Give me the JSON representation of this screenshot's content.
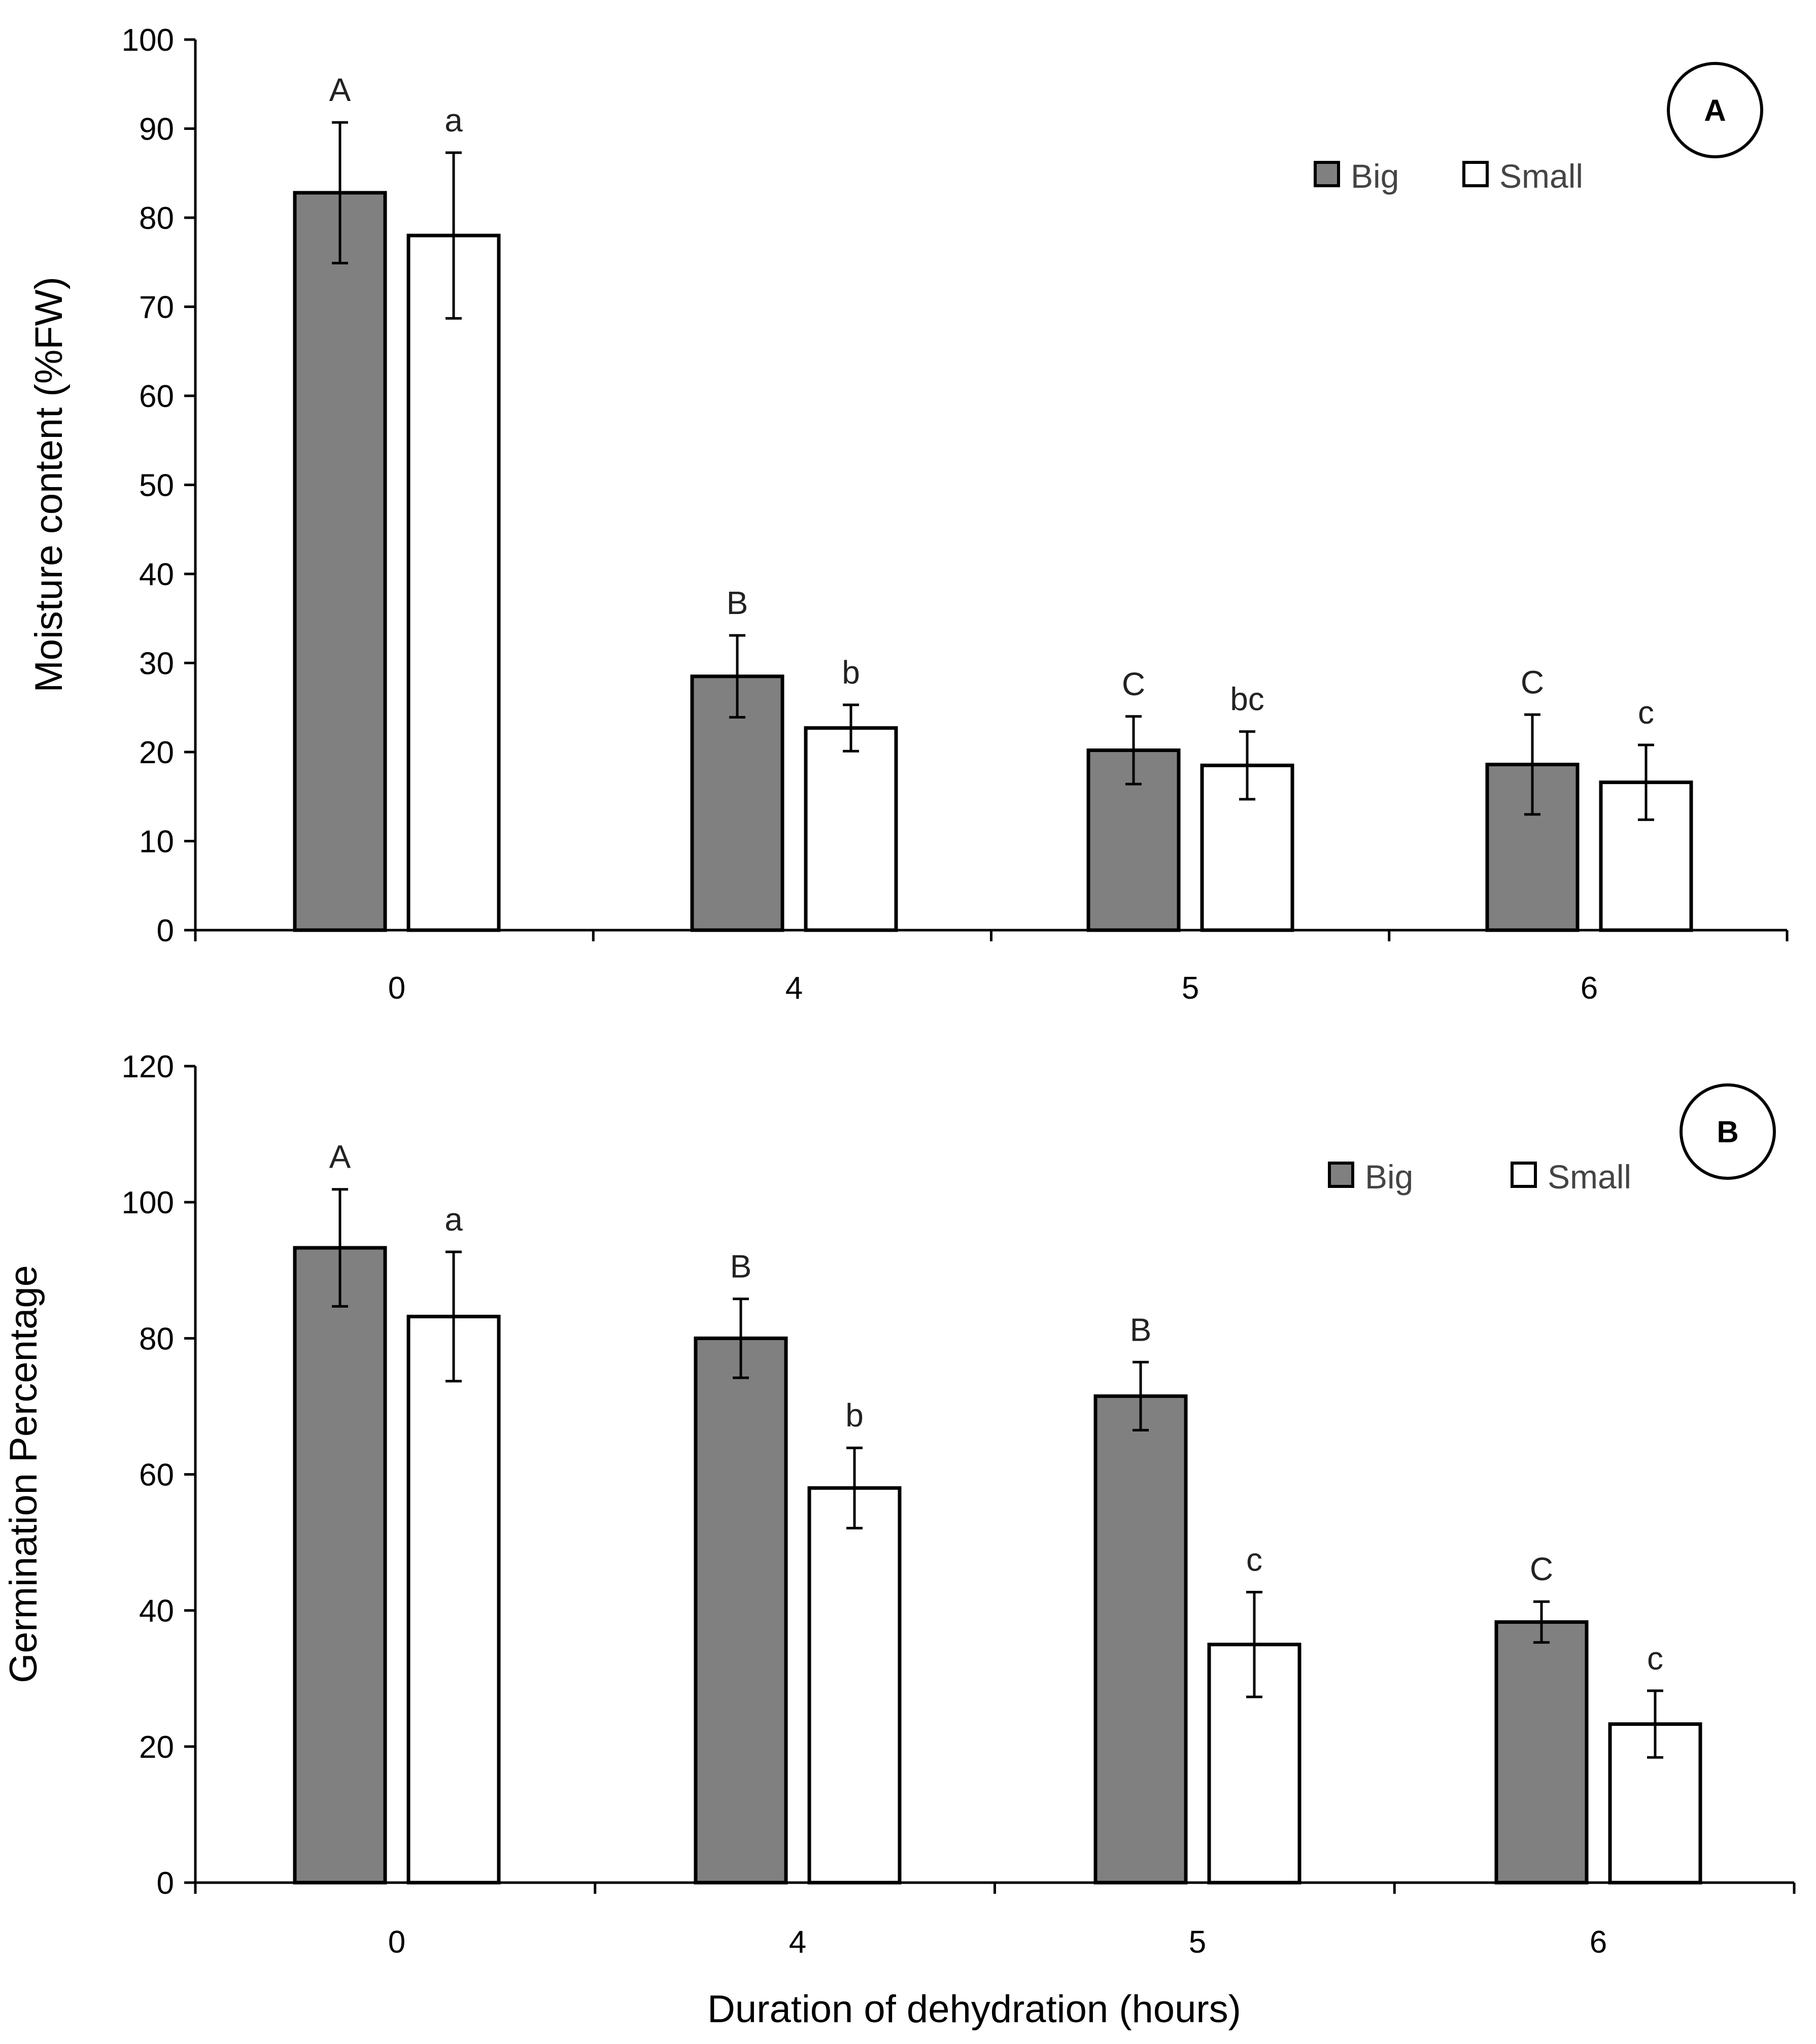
{
  "chart_data": [
    {
      "type": "bar",
      "panel": "A",
      "title": "",
      "xlabel": "",
      "ylabel": "Moisture content (%FW)",
      "categories": [
        "0",
        "4",
        "5",
        "6"
      ],
      "ylim": [
        0,
        100
      ],
      "yticks": [
        0,
        10,
        20,
        30,
        40,
        50,
        60,
        70,
        80,
        90,
        100
      ],
      "legend": "top-right",
      "series": [
        {
          "name": "Big",
          "color": "#808080",
          "values": [
            82.8,
            28.5,
            20.2,
            18.6
          ],
          "errors": [
            7.9,
            4.6,
            3.8,
            5.6
          ],
          "labels": [
            "A",
            "B",
            "C",
            "C"
          ]
        },
        {
          "name": "Small",
          "color": "#ffffff",
          "values": [
            78.0,
            22.7,
            18.5,
            16.6
          ],
          "errors": [
            9.3,
            2.6,
            3.8,
            4.2
          ],
          "labels": [
            "a",
            "b",
            "bc",
            "c"
          ]
        }
      ]
    },
    {
      "type": "bar",
      "panel": "B",
      "title": "",
      "xlabel": "Duration of dehydration (hours)",
      "ylabel": "Germination Percentage",
      "categories": [
        "0",
        "4",
        "5",
        "6"
      ],
      "ylim": [
        0,
        120
      ],
      "yticks": [
        0,
        20,
        40,
        60,
        80,
        100,
        120
      ],
      "legend": "top-right",
      "series": [
        {
          "name": "Big",
          "color": "#808080",
          "values": [
            93.3,
            80.0,
            71.5,
            38.3
          ],
          "errors": [
            8.6,
            5.8,
            5.0,
            3.0
          ],
          "labels": [
            "A",
            "B",
            "B",
            "C"
          ]
        },
        {
          "name": "Small",
          "color": "#ffffff",
          "values": [
            83.2,
            58.0,
            35.0,
            23.3
          ],
          "errors": [
            9.5,
            5.9,
            7.7,
            4.9
          ],
          "labels": [
            "a",
            "b",
            "c",
            "c"
          ]
        }
      ]
    }
  ]
}
